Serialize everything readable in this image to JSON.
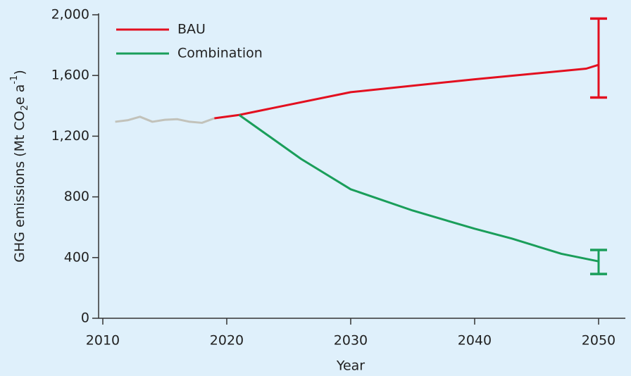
{
  "chart_data": {
    "type": "line",
    "xlabel": "Year",
    "ylabel": [
      "GHG emissions (Mt CO",
      "2",
      "e a",
      "-1",
      ")"
    ],
    "xlim": [
      2009.66,
      2052.16
    ],
    "xticks": [
      2010,
      2020,
      2030,
      2040,
      2050
    ],
    "ylim": [
      0,
      2000
    ],
    "yticks": [
      0,
      400,
      800,
      {
        "value": 1200,
        "label": "1,200"
      },
      {
        "value": 1600,
        "label": "1,600"
      },
      {
        "value": 2000,
        "label": "2,000"
      }
    ],
    "legend": "upper left",
    "series": [
      {
        "color": "#c2c2ba",
        "x": [
          2011,
          2012,
          2013,
          2014,
          2015,
          2016,
          2017,
          2018,
          2019
        ],
        "values": [
          1295,
          1305,
          1328,
          1295,
          1308,
          1312,
          1295,
          1288,
          1318
        ]
      },
      {
        "name": "BAU",
        "color": "#e30f1f",
        "x": [
          2019,
          2021,
          2030,
          2040,
          2049,
          2050
        ],
        "values": [
          1318,
          1340,
          1490,
          1575,
          1645,
          1670
        ],
        "range_x": 2050,
        "range": [
          1455,
          1975
        ]
      },
      {
        "name": "Combination",
        "color": "#1a9e5a",
        "x": [
          2021,
          2026,
          2030,
          2035,
          2040,
          2043,
          2047,
          2050
        ],
        "values": [
          1340,
          1050,
          850,
          710,
          590,
          525,
          425,
          375
        ],
        "range_x": 2050,
        "range": [
          292,
          450
        ]
      }
    ]
  }
}
